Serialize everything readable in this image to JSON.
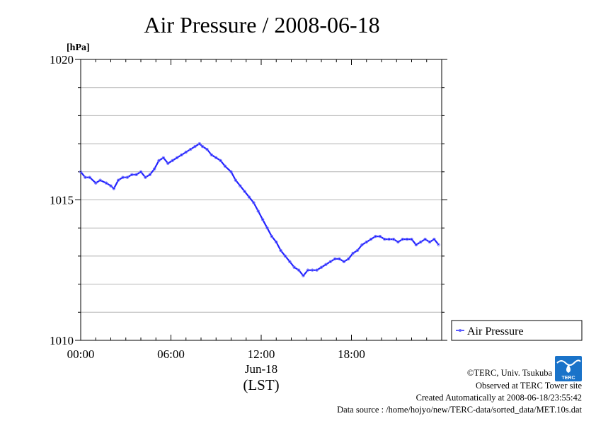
{
  "chart_data": {
    "type": "line",
    "title": "Air Pressure / 2008-06-18",
    "ylabel": "[hPa]",
    "xlabel": "(LST)",
    "x_date_label": "Jun-18",
    "ylim": [
      1010,
      1020
    ],
    "xlim": [
      0,
      24
    ],
    "y_ticks": [
      "1010",
      "1015",
      "1020"
    ],
    "x_ticks": [
      "00:00",
      "06:00",
      "12:00",
      "18:00"
    ],
    "grid": true,
    "legend": "bottom-right outside",
    "series": [
      {
        "name": "Air Pressure",
        "color": "#2222ff",
        "x": [
          0.0,
          0.3,
          0.6,
          1.0,
          1.3,
          1.7,
          2.0,
          2.2,
          2.5,
          2.8,
          3.1,
          3.4,
          3.7,
          4.0,
          4.3,
          4.6,
          4.9,
          5.2,
          5.5,
          5.8,
          6.1,
          6.4,
          6.7,
          7.0,
          7.3,
          7.6,
          7.9,
          8.1,
          8.4,
          8.7,
          9.0,
          9.3,
          9.6,
          10.0,
          10.3,
          10.6,
          10.9,
          11.2,
          11.5,
          11.8,
          12.1,
          12.4,
          12.7,
          13.0,
          13.3,
          13.6,
          13.9,
          14.2,
          14.5,
          14.8,
          15.1,
          15.4,
          15.7,
          16.0,
          16.3,
          16.6,
          16.9,
          17.2,
          17.5,
          17.8,
          18.1,
          18.4,
          18.7,
          19.0,
          19.3,
          19.6,
          19.9,
          20.2,
          20.5,
          20.8,
          21.1,
          21.4,
          21.7,
          22.0,
          22.3,
          22.6,
          22.9,
          23.2,
          23.5,
          23.8
        ],
        "y": [
          1016.0,
          1015.8,
          1015.8,
          1015.6,
          1015.7,
          1015.6,
          1015.5,
          1015.4,
          1015.7,
          1015.8,
          1015.8,
          1015.9,
          1015.9,
          1016.0,
          1015.8,
          1015.9,
          1016.1,
          1016.4,
          1016.5,
          1016.3,
          1016.4,
          1016.5,
          1016.6,
          1016.7,
          1016.8,
          1016.9,
          1017.0,
          1016.9,
          1016.8,
          1016.6,
          1016.5,
          1016.4,
          1016.2,
          1016.0,
          1015.7,
          1015.5,
          1015.3,
          1015.1,
          1014.9,
          1014.6,
          1014.3,
          1014.0,
          1013.7,
          1013.5,
          1013.2,
          1013.0,
          1012.8,
          1012.6,
          1012.5,
          1012.3,
          1012.5,
          1012.5,
          1012.5,
          1012.6,
          1012.7,
          1012.8,
          1012.9,
          1012.9,
          1012.8,
          1012.9,
          1013.1,
          1013.2,
          1013.4,
          1013.5,
          1013.6,
          1013.7,
          1013.7,
          1013.6,
          1013.6,
          1013.6,
          1013.5,
          1013.6,
          1013.6,
          1013.6,
          1013.4,
          1013.5,
          1013.6,
          1013.5,
          1013.6,
          1013.4
        ]
      }
    ]
  },
  "credits": {
    "copyright": "©TERC, Univ. Tsukuba",
    "site": "Observed at TERC Tower site",
    "created": "Created Automatically at 2008-06-18/23:55:42",
    "source": "Data source : /home/hojyo/new/TERC-data/sorted_data/MET.10s.dat",
    "logo_text": "TERC"
  }
}
